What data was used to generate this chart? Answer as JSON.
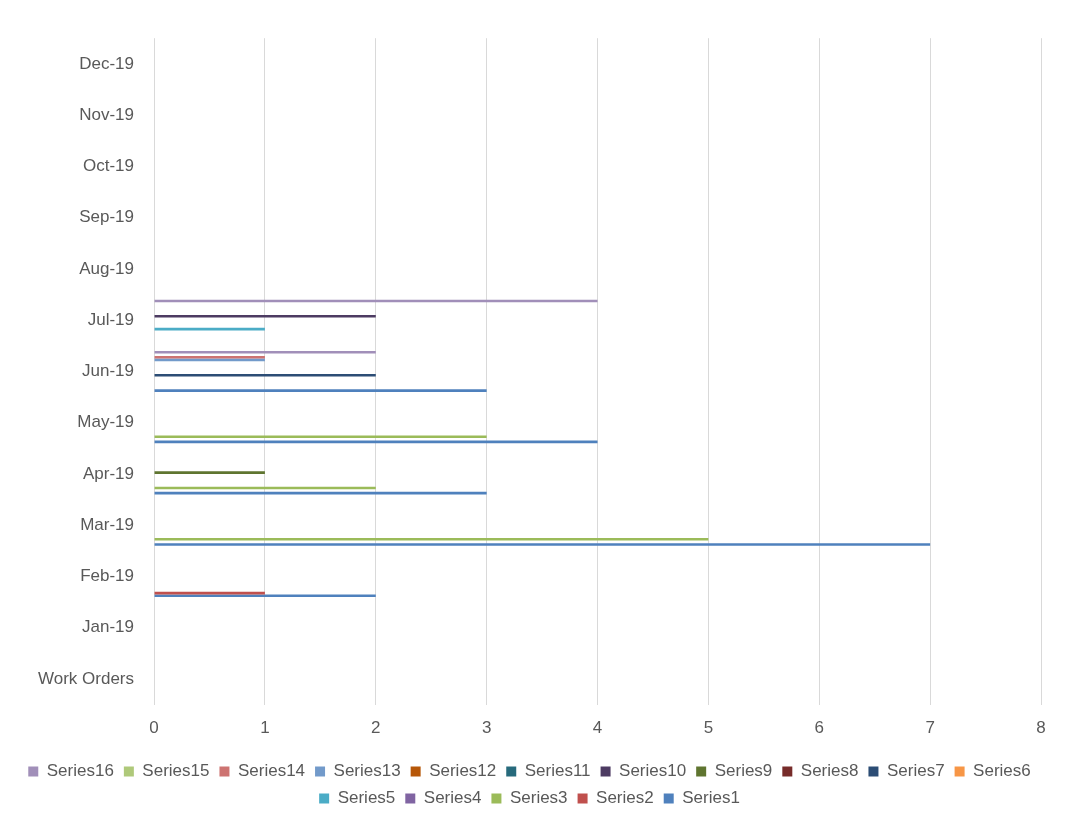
{
  "chart_data": {
    "type": "bar",
    "orientation": "horizontal",
    "categories": [
      "Dec-19",
      "Nov-19",
      "Oct-19",
      "Sep-19",
      "Aug-19",
      "Jul-19",
      "Jun-19",
      "May-19",
      "Apr-19",
      "Mar-19",
      "Feb-19",
      "Jan-19",
      "Work Orders"
    ],
    "series": [
      {
        "name": "Series1",
        "color": "#4f81bd",
        "values": [
          null,
          null,
          null,
          null,
          null,
          null,
          3,
          4,
          3,
          7,
          2,
          null,
          null
        ]
      },
      {
        "name": "Series2",
        "color": "#c0504d",
        "values": [
          null,
          null,
          null,
          null,
          null,
          null,
          null,
          null,
          null,
          null,
          1,
          null,
          null
        ]
      },
      {
        "name": "Series3",
        "color": "#9bbb59",
        "values": [
          null,
          null,
          null,
          null,
          null,
          null,
          null,
          3,
          2,
          5,
          null,
          null,
          null
        ]
      },
      {
        "name": "Series4",
        "color": "#8064a2",
        "values": [
          null,
          null,
          null,
          null,
          null,
          null,
          null,
          null,
          null,
          null,
          null,
          null,
          null
        ]
      },
      {
        "name": "Series5",
        "color": "#4bacc6",
        "values": [
          null,
          null,
          null,
          null,
          null,
          1,
          null,
          null,
          null,
          null,
          null,
          null,
          null
        ]
      },
      {
        "name": "Series6",
        "color": "#f79646",
        "values": [
          null,
          null,
          null,
          null,
          null,
          null,
          null,
          null,
          null,
          null,
          null,
          null,
          null
        ]
      },
      {
        "name": "Series7",
        "color": "#2c4d75",
        "values": [
          null,
          null,
          null,
          null,
          null,
          null,
          2,
          null,
          null,
          null,
          null,
          null,
          null
        ]
      },
      {
        "name": "Series8",
        "color": "#772c2a",
        "values": [
          null,
          null,
          null,
          null,
          null,
          null,
          null,
          null,
          null,
          null,
          null,
          null,
          null
        ]
      },
      {
        "name": "Series9",
        "color": "#5f7530",
        "values": [
          null,
          null,
          null,
          null,
          null,
          null,
          null,
          null,
          1,
          null,
          null,
          null,
          null
        ]
      },
      {
        "name": "Series10",
        "color": "#4d3b62",
        "values": [
          null,
          null,
          null,
          null,
          null,
          2,
          null,
          null,
          null,
          null,
          null,
          null,
          null
        ]
      },
      {
        "name": "Series11",
        "color": "#276a7c",
        "values": [
          null,
          null,
          null,
          null,
          null,
          null,
          null,
          null,
          null,
          null,
          null,
          null,
          null
        ]
      },
      {
        "name": "Series12",
        "color": "#b65708",
        "values": [
          null,
          null,
          null,
          null,
          null,
          null,
          null,
          null,
          null,
          null,
          null,
          null,
          null
        ]
      },
      {
        "name": "Series13",
        "color": "#729aca",
        "values": [
          null,
          null,
          null,
          null,
          null,
          null,
          1,
          null,
          null,
          null,
          null,
          null,
          null
        ]
      },
      {
        "name": "Series14",
        "color": "#cd7371",
        "values": [
          null,
          null,
          null,
          null,
          null,
          null,
          1,
          null,
          null,
          null,
          null,
          null,
          null
        ]
      },
      {
        "name": "Series15",
        "color": "#afc97a",
        "values": [
          null,
          null,
          null,
          null,
          null,
          null,
          null,
          null,
          null,
          null,
          null,
          null,
          null
        ]
      },
      {
        "name": "Series16",
        "color": "#a18fb9",
        "values": [
          null,
          null,
          null,
          null,
          null,
          4,
          2,
          null,
          null,
          null,
          null,
          null,
          null
        ]
      }
    ],
    "xlim": [
      0,
      8
    ],
    "xticks": [
      0,
      1,
      2,
      3,
      4,
      5,
      6,
      7,
      8
    ],
    "grid": "x",
    "legend": "bottom"
  }
}
